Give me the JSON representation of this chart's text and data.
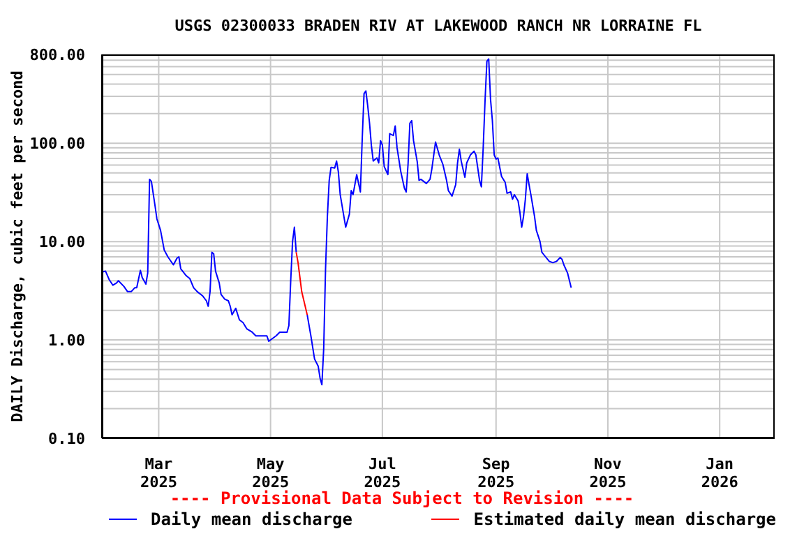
{
  "chart_data": {
    "type": "line",
    "title": "USGS 02300033 BRADEN RIV AT LAKEWOOD RANCH NR LORRAINE FL",
    "ylabel": "DAILY Discharge, cubic feet per second",
    "annotations": [
      "---- Provisional Data Subject to Revision ----"
    ],
    "log": "y",
    "grid": true,
    "legend": "bottom",
    "xlim": [
      "2025-01-29",
      "2026-01-31"
    ],
    "xticks": [
      {
        "value": "2025-03-01",
        "label": "Mar\n2025"
      },
      {
        "value": "2025-05-01",
        "label": "May\n2025"
      },
      {
        "value": "2025-07-01",
        "label": "Jul\n2025"
      },
      {
        "value": "2025-09-01",
        "label": "Sep\n2025"
      },
      {
        "value": "2025-11-01",
        "label": "Nov\n2025"
      },
      {
        "value": "2026-01-01",
        "label": "Jan\n2026"
      }
    ],
    "ylim": [
      0.1,
      800
    ],
    "yticks": [
      {
        "value": 0.1,
        "label": "0.10"
      },
      {
        "value": 0.2,
        "label": null
      },
      {
        "value": 0.3,
        "label": null
      },
      {
        "value": 0.4,
        "label": null
      },
      {
        "value": 0.5,
        "label": null
      },
      {
        "value": 0.6,
        "label": null
      },
      {
        "value": 0.7,
        "label": null
      },
      {
        "value": 0.8,
        "label": null
      },
      {
        "value": 0.9,
        "label": null
      },
      {
        "value": 1,
        "label": "1.00"
      },
      {
        "value": 2,
        "label": null
      },
      {
        "value": 3,
        "label": null
      },
      {
        "value": 4,
        "label": null
      },
      {
        "value": 5,
        "label": null
      },
      {
        "value": 6,
        "label": null
      },
      {
        "value": 7,
        "label": null
      },
      {
        "value": 8,
        "label": null
      },
      {
        "value": 9,
        "label": null
      },
      {
        "value": 10,
        "label": "10.00"
      },
      {
        "value": 20,
        "label": null
      },
      {
        "value": 30,
        "label": null
      },
      {
        "value": 40,
        "label": null
      },
      {
        "value": 50,
        "label": null
      },
      {
        "value": 60,
        "label": null
      },
      {
        "value": 70,
        "label": null
      },
      {
        "value": 80,
        "label": null
      },
      {
        "value": 90,
        "label": null
      },
      {
        "value": 100,
        "label": "100.00"
      },
      {
        "value": 200,
        "label": null
      },
      {
        "value": 300,
        "label": null
      },
      {
        "value": 400,
        "label": null
      },
      {
        "value": 500,
        "label": null
      },
      {
        "value": 600,
        "label": null
      },
      {
        "value": 700,
        "label": null
      },
      {
        "value": 800,
        "label": "800.00"
      }
    ],
    "series": [
      {
        "name": "Daily mean discharge",
        "color": "#0000ff",
        "x": [
          "2025-01-29",
          "2025-01-31",
          "2025-02-02",
          "2025-02-04",
          "2025-02-06",
          "2025-02-07",
          "2025-02-10",
          "2025-02-12",
          "2025-02-14",
          "2025-02-16",
          "2025-02-17",
          "2025-02-19",
          "2025-02-20",
          "2025-02-22",
          "2025-02-23",
          "2025-02-24",
          "2025-02-25",
          "2025-02-27",
          "2025-02-28",
          "2025-03-02",
          "2025-03-04",
          "2025-03-06",
          "2025-03-09",
          "2025-03-11",
          "2025-03-12",
          "2025-03-13",
          "2025-03-16",
          "2025-03-18",
          "2025-03-20",
          "2025-03-22",
          "2025-03-25",
          "2025-03-27",
          "2025-03-28",
          "2025-03-29",
          "2025-03-30",
          "2025-03-31",
          "2025-04-01",
          "2025-04-03",
          "2025-04-04",
          "2025-04-06",
          "2025-04-08",
          "2025-04-09",
          "2025-04-10",
          "2025-04-12",
          "2025-04-14",
          "2025-04-16",
          "2025-04-18",
          "2025-04-21",
          "2025-04-23",
          "2025-04-29",
          "2025-04-30",
          "2025-05-04",
          "2025-05-06",
          "2025-05-08",
          "2025-05-10",
          "2025-05-11",
          "2025-05-12",
          "2025-05-13",
          "2025-05-14",
          "2025-05-15",
          "2025-05-18",
          "2025-05-21",
          "2025-05-23",
          "2025-05-25",
          "2025-05-27",
          "2025-05-28",
          "2025-05-29",
          "2025-05-30",
          "2025-05-31",
          "2025-06-01",
          "2025-06-02",
          "2025-06-03",
          "2025-06-05",
          "2025-06-06",
          "2025-06-07",
          "2025-06-08",
          "2025-06-10",
          "2025-06-11",
          "2025-06-13",
          "2025-06-14",
          "2025-06-15",
          "2025-06-17",
          "2025-06-19",
          "2025-06-20",
          "2025-06-21",
          "2025-06-22",
          "2025-06-23",
          "2025-06-24",
          "2025-06-25",
          "2025-06-26",
          "2025-06-28",
          "2025-06-29",
          "2025-06-30",
          "2025-07-01",
          "2025-07-02",
          "2025-07-04",
          "2025-07-05",
          "2025-07-07",
          "2025-07-08",
          "2025-07-09",
          "2025-07-11",
          "2025-07-13",
          "2025-07-14",
          "2025-07-15",
          "2025-07-16",
          "2025-07-17",
          "2025-07-18",
          "2025-07-20",
          "2025-07-21",
          "2025-07-22",
          "2025-07-25",
          "2025-07-27",
          "2025-07-28",
          "2025-07-30",
          "2025-08-01",
          "2025-08-03",
          "2025-08-05",
          "2025-08-06",
          "2025-08-08",
          "2025-08-10",
          "2025-08-11",
          "2025-08-12",
          "2025-08-13",
          "2025-08-15",
          "2025-08-16",
          "2025-08-18",
          "2025-08-20",
          "2025-08-21",
          "2025-08-23",
          "2025-08-24",
          "2025-08-25",
          "2025-08-26",
          "2025-08-27",
          "2025-08-28",
          "2025-08-29",
          "2025-08-30",
          "2025-08-31",
          "2025-09-01",
          "2025-09-02",
          "2025-09-04",
          "2025-09-06",
          "2025-09-07",
          "2025-09-09",
          "2025-09-10",
          "2025-09-11",
          "2025-09-13",
          "2025-09-14",
          "2025-09-15",
          "2025-09-16",
          "2025-09-17",
          "2025-09-18",
          "2025-09-19",
          "2025-09-20",
          "2025-09-22",
          "2025-09-23",
          "2025-09-25",
          "2025-09-26",
          "2025-09-28",
          "2025-09-30",
          "2025-10-02",
          "2025-10-04",
          "2025-10-06",
          "2025-10-07",
          "2025-10-08",
          "2025-10-10",
          "2025-10-12"
        ],
        "values": [
          4.9,
          5.0,
          4.1,
          3.6,
          3.8,
          4.0,
          3.5,
          3.1,
          3.1,
          3.4,
          3.4,
          5.1,
          4.3,
          3.7,
          4.8,
          43,
          41,
          23,
          17,
          13,
          8.2,
          7.0,
          5.8,
          6.8,
          7.0,
          5.3,
          4.5,
          4.2,
          3.4,
          3.1,
          2.8,
          2.5,
          2.2,
          3.1,
          7.8,
          7.5,
          5.0,
          3.8,
          2.9,
          2.6,
          2.5,
          2.2,
          1.8,
          2.1,
          1.6,
          1.5,
          1.3,
          1.2,
          1.1,
          1.1,
          0.97,
          1.1,
          1.2,
          1.2,
          1.2,
          1.4,
          4.0,
          10,
          14,
          7.8,
          null,
          1.8,
          1.1,
          0.64,
          0.54,
          0.41,
          0.35,
          0.82,
          5.3,
          18,
          42,
          57,
          56,
          66,
          51,
          30,
          18,
          14,
          19,
          33,
          30,
          48,
          32,
          110,
          320,
          340,
          240,
          160,
          95,
          66,
          71,
          63,
          106,
          96,
          58,
          48,
          125,
          120,
          150,
          90,
          52,
          35,
          32,
          61,
          160,
          170,
          106,
          65,
          42,
          43,
          39,
          43,
          55,
          103,
          76,
          61,
          42,
          33,
          29,
          38,
          63,
          87,
          66,
          45,
          63,
          76,
          83,
          76,
          42,
          36,
          90,
          270,
          680,
          720,
          280,
          170,
          76,
          69,
          71,
          46,
          40,
          31,
          32,
          27,
          30,
          26,
          20,
          14,
          18,
          27,
          49,
          38,
          30,
          18,
          13,
          10,
          7.8,
          7.0,
          6.3,
          6.1,
          6.3,
          6.9,
          6.6,
          5.8,
          4.8,
          3.4
        ]
      },
      {
        "name": "Estimated daily mean discharge",
        "color": "#ff0000",
        "x": [
          "2025-05-15",
          "2025-05-16",
          "2025-05-18",
          "2025-05-21"
        ],
        "values": [
          7.8,
          6.1,
          3.1,
          1.8
        ]
      }
    ]
  }
}
